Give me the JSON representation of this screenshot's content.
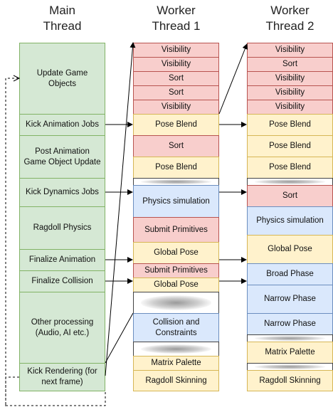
{
  "headers": {
    "main": "Main\nThread",
    "worker1": "Worker\nThread 1",
    "worker2": "Worker\nThread 2"
  },
  "main_thread": [
    "Update Game Objects",
    "Kick Animation Jobs",
    "Post Animation Game Object Update",
    "Kick Dynamics Jobs",
    "Ragdoll Physics",
    "Finalize Animation",
    "Finalize Collision",
    "Other processing (Audio, AI etc.)",
    "Kick Rendering (for next frame)"
  ],
  "worker1": [
    "Visibility",
    "Visibility",
    "Sort",
    "Sort",
    "Visibility",
    "Pose Blend",
    "Sort",
    "Pose Blend",
    "",
    "Physics simulation",
    "Submit Primitives",
    "Global Pose",
    "Submit Primitives",
    "Global Pose",
    "",
    "Collision and Constraints",
    "",
    "Matrix Palette",
    "Ragdoll Skinning"
  ],
  "worker2": [
    "Visibility",
    "Sort",
    "Visibility",
    "Visibility",
    "Visibility",
    "Pose Blend",
    "Pose Blend",
    "Pose Blend",
    "",
    "Sort",
    "Physics simulation",
    "Global Pose",
    "Broad Phase",
    "Narrow Phase",
    "Narrow Phase",
    "",
    "Matrix Palette",
    "",
    "Ragdoll Skinning"
  ]
}
